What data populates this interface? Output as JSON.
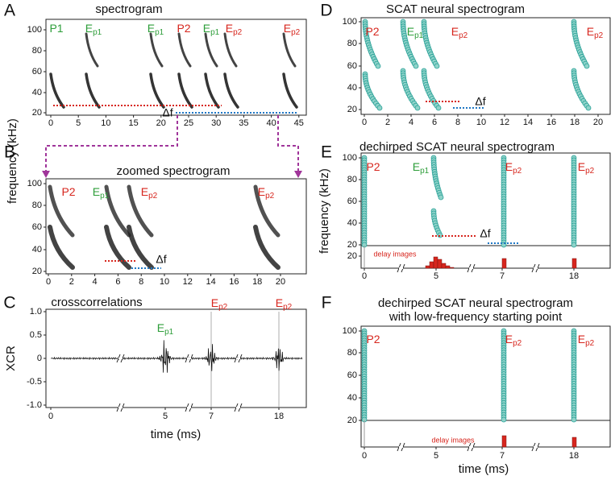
{
  "figure": {
    "ylabel": "frequency (kHz)",
    "A": {
      "letter": "A",
      "title": "spectrogram",
      "yticks": [
        100,
        80,
        60,
        40,
        20
      ],
      "xticks": [
        0,
        5,
        10,
        15,
        20,
        25,
        30,
        35,
        40,
        45
      ],
      "labels": [
        {
          "base": "P1"
        },
        {
          "base": "E",
          "sub": "p1"
        },
        {
          "base": "E",
          "sub": "p1"
        },
        {
          "base": "P2"
        },
        {
          "base": "E",
          "sub": "p1"
        },
        {
          "base": "E",
          "sub": "p2"
        },
        {
          "base": "E",
          "sub": "p2"
        }
      ],
      "delta": "Δf"
    },
    "B": {
      "letter": "B",
      "title": "zoomed spectrogram",
      "yticks": [
        100,
        80,
        60,
        40,
        20
      ],
      "xticks": [
        0,
        2,
        4,
        6,
        8,
        10,
        12,
        14,
        16,
        18,
        20
      ],
      "labels": [
        {
          "base": "P2"
        },
        {
          "base": "E",
          "sub": "p1"
        },
        {
          "base": "E",
          "sub": "p2"
        },
        {
          "base": "E",
          "sub": "p2"
        }
      ],
      "delta": "Δf"
    },
    "C": {
      "letter": "C",
      "title": "crosscorrelations",
      "ylabel": "XCR",
      "yticks": [
        "1.0",
        "0.5",
        "0",
        "-0.5",
        "-1.0"
      ],
      "xticks": [
        0,
        5,
        7,
        18
      ],
      "labels": [
        {
          "base": "E",
          "sub": "p1"
        },
        {
          "base": "E",
          "sub": "p2"
        },
        {
          "base": "E",
          "sub": "p2"
        }
      ],
      "xlabel": "time (ms)"
    },
    "D": {
      "letter": "D",
      "title": "SCAT neural spectrogram",
      "yticks": [
        100,
        80,
        60,
        40,
        20
      ],
      "xticks": [
        0,
        2,
        4,
        6,
        8,
        10,
        12,
        14,
        16,
        18,
        20
      ],
      "labels": [
        {
          "base": "P2"
        },
        {
          "base": "E",
          "sub": "p1"
        },
        {
          "base": "E",
          "sub": "p2"
        },
        {
          "base": "E",
          "sub": "p2"
        }
      ],
      "delta": "Δf"
    },
    "E": {
      "letter": "E",
      "title": "dechirped SCAT neural spectrogram",
      "ylabel": "frequency (kHz)",
      "yticks": [
        100,
        80,
        60,
        40,
        20
      ],
      "lower_yticks": [
        20
      ],
      "xticks": [
        0,
        5,
        7,
        18
      ],
      "labels": [
        {
          "base": "P2"
        },
        {
          "base": "E",
          "sub": "p1"
        },
        {
          "base": "E",
          "sub": "p2"
        },
        {
          "base": "E",
          "sub": "p2"
        }
      ],
      "delta": "Δf",
      "delay_label": "delay images"
    },
    "F": {
      "letter": "F",
      "title": [
        "dechirped SCAT neural spectrogram",
        "with low-frequency starting point"
      ],
      "yticks": [
        100,
        80,
        60,
        40,
        20
      ],
      "xticks": [
        0,
        5,
        7,
        18
      ],
      "labels": [
        {
          "base": "P2"
        },
        {
          "base": "E",
          "sub": "p2"
        },
        {
          "base": "E",
          "sub": "p2"
        }
      ],
      "delay_label": "delay images",
      "xlabel": "time (ms)"
    }
  }
}
